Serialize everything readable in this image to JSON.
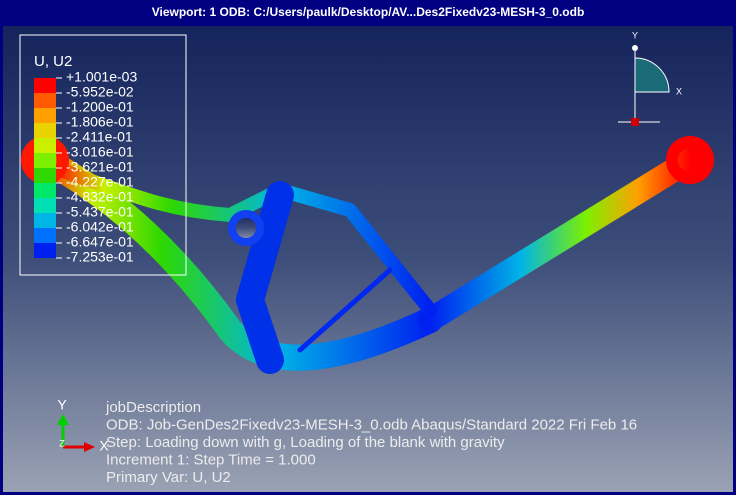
{
  "window": {
    "title": "Viewport: 1     ODB: C:/Users/paulk/Desktop/AV...Des2Fixedv23-MESH-3_0.odb"
  },
  "legend": {
    "title": "U, U2",
    "values": [
      "+1.001e-03",
      "-5.952e-02",
      "-1.200e-01",
      "-1.806e-01",
      "-2.411e-01",
      "-3.016e-01",
      "-3.621e-01",
      "-4.227e-01",
      "-4.832e-01",
      "-5.437e-01",
      "-6.042e-01",
      "-6.647e-01",
      "-7.253e-01"
    ],
    "colors": [
      "#ff0000",
      "#ff5a00",
      "#ffa000",
      "#e8d200",
      "#c8f000",
      "#7cf000",
      "#2ed800",
      "#00e86a",
      "#00e0b4",
      "#00b4e6",
      "#0070ff",
      "#0020f0"
    ]
  },
  "triad": {
    "y": "Y",
    "x": "X",
    "z": "Z"
  },
  "info": {
    "lines": [
      "jobDescription",
      "ODB: Job-GenDes2Fixedv23-MESH-3_0.odb    Abaqus/Standard 2022    Fri Feb 16",
      "Step: Loading down with g, Loading of the blank with gravity",
      "Increment      1: Step Time =     1.000",
      "Primary Var: U, U2"
    ]
  }
}
